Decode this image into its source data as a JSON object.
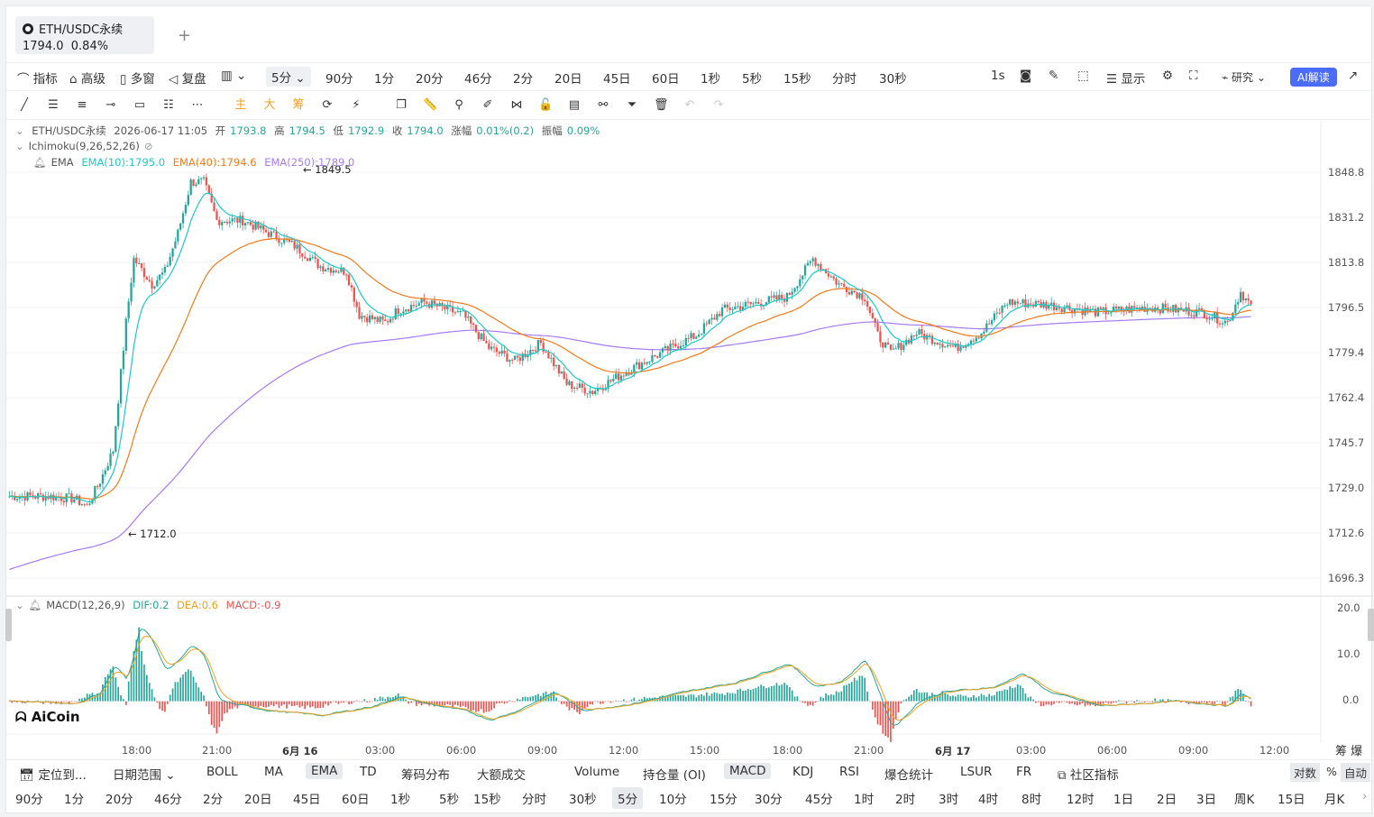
{
  "tab": {
    "symbol": "ETH/USDC永续",
    "price": "1794.0",
    "change": "0.84%"
  },
  "toolbar1": {
    "left": [
      "指标",
      "高级",
      "多窗",
      "复盘"
    ],
    "selected_interval": "5分",
    "intervals": [
      "90分",
      "1分",
      "20分",
      "46分",
      "2分",
      "20日",
      "45日",
      "60日",
      "1秒",
      "5秒",
      "15秒",
      "分时",
      "30秒"
    ],
    "right": {
      "sec": "1s",
      "display": "显示",
      "research": "研究",
      "ai": "AI解读"
    }
  },
  "toolbar2": {
    "labels": [
      "主",
      "大",
      "筹"
    ]
  },
  "ohlc": {
    "symbol": "ETH/USDC永续",
    "datetime": "2026-06-17 11:05",
    "open_label": "开",
    "open": "1793.8",
    "high_label": "高",
    "high": "1794.5",
    "low_label": "低",
    "low": "1792.9",
    "close_label": "收",
    "close": "1794.0",
    "chg_label": "涨幅",
    "chg": "0.01%(0.2)",
    "amp_label": "振幅",
    "amp": "0.09%"
  },
  "indicators": {
    "ichimoku": "Ichimoku(9,26,52,26)",
    "ema_name": "EMA",
    "ema10": "EMA(10):1795.0",
    "ema40": "EMA(40):1794.6",
    "ema250": "EMA(250):1789.0"
  },
  "macd": {
    "name": "MACD(12,26,9)",
    "dif": "DIF:0.2",
    "dea": "DEA:0.6",
    "macd": "MACD:-0.9"
  },
  "annotations": {
    "high": "1849.5",
    "low": "1712.0"
  },
  "price_axis": [
    "1848.8",
    "1831.2",
    "1813.8",
    "1796.5",
    "1779.4",
    "1762.4",
    "1745.7",
    "1729.0",
    "1712.6",
    "1696.3"
  ],
  "macd_axis": [
    "20.0",
    "10.0",
    "0.0"
  ],
  "time_axis": [
    "18:00",
    "21:00",
    "6月 16",
    "03:00",
    "06:00",
    "09:00",
    "12:00",
    "15:00",
    "18:00",
    "21:00",
    "6月 17",
    "03:00",
    "06:00",
    "09:00",
    "12:00"
  ],
  "axis_right_label": "筹 爆",
  "bottom1": {
    "locate": "定位到...",
    "date_range": "日期范围",
    "items": [
      "BOLL",
      "MA",
      "EMA",
      "TD",
      "筹码分布",
      "大额成交"
    ],
    "items2": [
      "Volume",
      "持仓量 (OI)",
      "MACD",
      "KDJ",
      "RSI",
      "爆仓统计",
      "LSUR",
      "FR",
      "社区指标"
    ],
    "right": [
      "对数",
      "%",
      "自动"
    ]
  },
  "bottom2": {
    "intervals": [
      "90分",
      "1分",
      "20分",
      "46分",
      "2分",
      "20日",
      "45日",
      "60日",
      "1秒",
      "5秒",
      "15秒",
      "分时",
      "30秒",
      "5分",
      "10分",
      "15分",
      "30分",
      "45分",
      "1时",
      "2时",
      "3时",
      "4时",
      "8时",
      "12时",
      "1日",
      "2日",
      "3日",
      "周K",
      "15日",
      "月K"
    ],
    "selected": "5分"
  },
  "logo": "AiCoin",
  "colors": {
    "up": "#26a69a",
    "down": "#ef5350",
    "ema10": "#1ec8c8",
    "ema40": "#f07a1c",
    "ema250": "#a67af4",
    "dea": "#f0a020"
  },
  "chart_data": {
    "type": "candlestick",
    "y_range": [
      1690,
      1852
    ],
    "keypoints": [
      [
        0,
        1722
      ],
      [
        15,
        1722
      ],
      [
        25,
        1721
      ],
      [
        30,
        1718
      ],
      [
        35,
        1728
      ],
      [
        40,
        1740
      ],
      [
        45,
        1790
      ],
      [
        48,
        1815
      ],
      [
        55,
        1805
      ],
      [
        60,
        1810
      ],
      [
        65,
        1825
      ],
      [
        70,
        1845
      ],
      [
        75,
        1845
      ],
      [
        80,
        1830
      ],
      [
        90,
        1830
      ],
      [
        100,
        1825
      ],
      [
        110,
        1820
      ],
      [
        120,
        1812
      ],
      [
        130,
        1810
      ],
      [
        135,
        1793
      ],
      [
        145,
        1790
      ],
      [
        150,
        1795
      ],
      [
        160,
        1798
      ],
      [
        175,
        1793
      ],
      [
        185,
        1780
      ],
      [
        195,
        1775
      ],
      [
        205,
        1782
      ],
      [
        215,
        1766
      ],
      [
        225,
        1763
      ],
      [
        240,
        1772
      ],
      [
        255,
        1780
      ],
      [
        265,
        1785
      ],
      [
        275,
        1795
      ],
      [
        285,
        1797
      ],
      [
        300,
        1800
      ],
      [
        310,
        1815
      ],
      [
        320,
        1805
      ],
      [
        330,
        1800
      ],
      [
        335,
        1785
      ],
      [
        340,
        1778
      ],
      [
        350,
        1786
      ],
      [
        365,
        1780
      ],
      [
        375,
        1786
      ],
      [
        385,
        1798
      ],
      [
        400,
        1797
      ],
      [
        420,
        1794
      ],
      [
        440,
        1796
      ],
      [
        460,
        1794
      ],
      [
        470,
        1790
      ],
      [
        475,
        1802
      ],
      [
        480,
        1795
      ]
    ],
    "macd_range": [
      -5,
      20
    ],
    "macd_keypoints": [
      [
        0,
        0
      ],
      [
        25,
        -0.5
      ],
      [
        35,
        2
      ],
      [
        40,
        8
      ],
      [
        45,
        4
      ],
      [
        50,
        17
      ],
      [
        55,
        12
      ],
      [
        60,
        6
      ],
      [
        70,
        12
      ],
      [
        75,
        9
      ],
      [
        80,
        0
      ],
      [
        100,
        -2
      ],
      [
        120,
        -3
      ],
      [
        140,
        -1
      ],
      [
        150,
        1
      ],
      [
        160,
        -0.5
      ],
      [
        175,
        -2
      ],
      [
        185,
        -4
      ],
      [
        195,
        -2
      ],
      [
        210,
        2
      ],
      [
        220,
        -2
      ],
      [
        240,
        -0.5
      ],
      [
        260,
        2
      ],
      [
        280,
        4
      ],
      [
        300,
        8
      ],
      [
        310,
        3
      ],
      [
        320,
        4
      ],
      [
        330,
        9
      ],
      [
        340,
        -6
      ],
      [
        350,
        0
      ],
      [
        360,
        2
      ],
      [
        380,
        3
      ],
      [
        390,
        6
      ],
      [
        400,
        2
      ],
      [
        420,
        -1
      ],
      [
        450,
        0
      ],
      [
        470,
        -1
      ],
      [
        475,
        2
      ],
      [
        480,
        -0.5
      ]
    ]
  }
}
